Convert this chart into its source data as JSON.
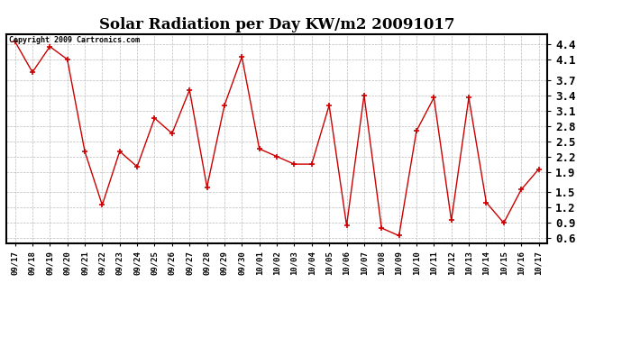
{
  "title": "Solar Radiation per Day KW/m2 20091017",
  "copyright_text": "Copyright 2009 Cartronics.com",
  "x_labels": [
    "09/17",
    "09/18",
    "09/19",
    "09/20",
    "09/21",
    "09/22",
    "09/23",
    "09/24",
    "09/25",
    "09/26",
    "09/27",
    "09/28",
    "09/29",
    "09/30",
    "10/01",
    "10/02",
    "10/03",
    "10/04",
    "10/05",
    "10/06",
    "10/07",
    "10/08",
    "10/09",
    "10/10",
    "10/11",
    "10/12",
    "10/13",
    "10/14",
    "10/15",
    "10/16",
    "10/17"
  ],
  "y_values": [
    4.45,
    3.85,
    4.35,
    4.1,
    2.3,
    1.25,
    2.3,
    2.0,
    2.95,
    2.65,
    3.5,
    1.6,
    3.2,
    4.15,
    2.35,
    2.2,
    2.05,
    2.05,
    3.2,
    0.85,
    3.4,
    0.8,
    0.65,
    2.7,
    3.35,
    0.95,
    3.35,
    1.3,
    0.9,
    1.55,
    1.95
  ],
  "line_color": "#cc0000",
  "marker_color": "#cc0000",
  "marker": "+",
  "background_color": "#ffffff",
  "grid_color": "#bbbbbb",
  "ylim": [
    0.5,
    4.6
  ],
  "yticks": [
    0.6,
    0.9,
    1.2,
    1.5,
    1.9,
    2.2,
    2.5,
    2.8,
    3.1,
    3.4,
    3.7,
    4.1,
    4.4
  ],
  "title_fontsize": 12,
  "tick_fontsize": 6.5,
  "copyright_fontsize": 6,
  "border_color": "#000000"
}
